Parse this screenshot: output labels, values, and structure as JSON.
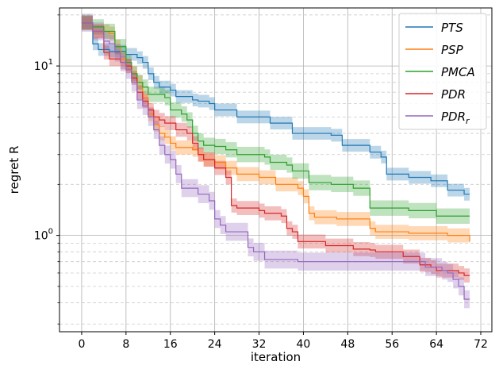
{
  "chart_data": {
    "type": "line",
    "xlabel": "iteration",
    "ylabel": "regret R",
    "xlim": [
      -4,
      74
    ],
    "ylim": [
      0.27,
      22
    ],
    "y_scale": "log",
    "grid": true,
    "legend_position": "top-right",
    "x_ticks": [
      0,
      8,
      16,
      24,
      32,
      40,
      48,
      56,
      64,
      72
    ],
    "y_major_ticks": [
      1,
      10
    ],
    "series": [
      {
        "name": "PTS",
        "color": "#1f77b4",
        "points": [
          [
            0,
            18
          ],
          [
            1,
            18
          ],
          [
            2,
            13.5
          ],
          [
            3,
            12.5
          ],
          [
            5,
            12.2
          ],
          [
            8,
            11.7
          ],
          [
            10,
            11.2
          ],
          [
            11,
            10.5
          ],
          [
            12,
            9
          ],
          [
            13,
            8
          ],
          [
            14,
            7.5
          ],
          [
            16,
            7.2
          ],
          [
            17,
            6.6
          ],
          [
            20,
            6.3
          ],
          [
            21,
            6.2
          ],
          [
            23,
            6.0
          ],
          [
            24,
            5.5
          ],
          [
            27,
            5.5
          ],
          [
            28,
            5.0
          ],
          [
            33,
            5.0
          ],
          [
            34,
            4.6
          ],
          [
            37,
            4.6
          ],
          [
            38,
            4.0
          ],
          [
            44,
            4.0
          ],
          [
            45,
            3.9
          ],
          [
            46,
            3.9
          ],
          [
            47,
            3.4
          ],
          [
            51,
            3.4
          ],
          [
            52,
            3.1
          ],
          [
            53,
            3.1
          ],
          [
            54,
            2.9
          ],
          [
            55,
            2.3
          ],
          [
            58,
            2.3
          ],
          [
            59,
            2.2
          ],
          [
            62,
            2.2
          ],
          [
            63,
            2.1
          ],
          [
            65,
            2.1
          ],
          [
            66,
            1.85
          ],
          [
            68,
            1.85
          ],
          [
            69,
            1.75
          ],
          [
            70,
            1.75
          ]
        ],
        "band": 0.09
      },
      {
        "name": "PSP",
        "color": "#ff7f0e",
        "points": [
          [
            0,
            18
          ],
          [
            1,
            18
          ],
          [
            2,
            16
          ],
          [
            5,
            15.5
          ],
          [
            6,
            13
          ],
          [
            7,
            11
          ],
          [
            8,
            10
          ],
          [
            9,
            9
          ],
          [
            10,
            8
          ],
          [
            11,
            6.5
          ],
          [
            12,
            5.2
          ],
          [
            13,
            4.5
          ],
          [
            14,
            4.0
          ],
          [
            15,
            3.8
          ],
          [
            16,
            3.5
          ],
          [
            17,
            3.3
          ],
          [
            20,
            3.2
          ],
          [
            21,
            3.0
          ],
          [
            22,
            2.8
          ],
          [
            24,
            2.7
          ],
          [
            26,
            2.5
          ],
          [
            28,
            2.3
          ],
          [
            31,
            2.3
          ],
          [
            32,
            2.2
          ],
          [
            34,
            2.2
          ],
          [
            35,
            2.0
          ],
          [
            38,
            2.0
          ],
          [
            39,
            1.9
          ],
          [
            40,
            1.7
          ],
          [
            41,
            1.35
          ],
          [
            42,
            1.28
          ],
          [
            45,
            1.28
          ],
          [
            46,
            1.25
          ],
          [
            51,
            1.25
          ],
          [
            52,
            1.1
          ],
          [
            53,
            1.05
          ],
          [
            58,
            1.05
          ],
          [
            59,
            1.03
          ],
          [
            65,
            1.03
          ],
          [
            66,
            1.0
          ],
          [
            69,
            1.0
          ],
          [
            70,
            0.92
          ]
        ],
        "band": 0.1
      },
      {
        "name": "PMCA",
        "color": "#2ca02c",
        "points": [
          [
            0,
            18
          ],
          [
            2,
            17
          ],
          [
            4,
            16
          ],
          [
            6,
            13
          ],
          [
            8,
            10.5
          ],
          [
            9,
            9
          ],
          [
            10,
            8
          ],
          [
            11,
            7.5
          ],
          [
            12,
            6.8
          ],
          [
            14,
            6.8
          ],
          [
            15,
            6.5
          ],
          [
            16,
            5.5
          ],
          [
            18,
            5.2
          ],
          [
            19,
            4.8
          ],
          [
            20,
            4.0
          ],
          [
            21,
            3.6
          ],
          [
            22,
            3.4
          ],
          [
            24,
            3.35
          ],
          [
            26,
            3.2
          ],
          [
            27,
            3.2
          ],
          [
            28,
            3.0
          ],
          [
            32,
            3.0
          ],
          [
            33,
            2.9
          ],
          [
            34,
            2.7
          ],
          [
            37,
            2.6
          ],
          [
            38,
            2.4
          ],
          [
            40,
            2.4
          ],
          [
            41,
            2.05
          ],
          [
            44,
            2.05
          ],
          [
            45,
            2.0
          ],
          [
            48,
            2.0
          ],
          [
            49,
            1.9
          ],
          [
            51,
            1.9
          ],
          [
            52,
            1.45
          ],
          [
            58,
            1.45
          ],
          [
            59,
            1.4
          ],
          [
            63,
            1.4
          ],
          [
            64,
            1.3
          ],
          [
            70,
            1.3
          ]
        ],
        "band": 0.11
      },
      {
        "name": "PDR",
        "color": "#d62728",
        "points": [
          [
            0,
            18
          ],
          [
            1,
            18
          ],
          [
            2,
            16
          ],
          [
            4,
            12
          ],
          [
            5,
            11
          ],
          [
            7,
            10.5
          ],
          [
            8,
            10
          ],
          [
            9,
            8.5
          ],
          [
            10,
            7
          ],
          [
            11,
            6.2
          ],
          [
            12,
            5.5
          ],
          [
            13,
            5.0
          ],
          [
            14,
            4.8
          ],
          [
            15,
            4.6
          ],
          [
            16,
            4.6
          ],
          [
            17,
            4.2
          ],
          [
            19,
            4.0
          ],
          [
            20,
            3.5
          ],
          [
            21,
            3.0
          ],
          [
            22,
            2.8
          ],
          [
            24,
            2.5
          ],
          [
            25,
            2.5
          ],
          [
            26,
            2.2
          ],
          [
            27,
            1.5
          ],
          [
            28,
            1.45
          ],
          [
            32,
            1.4
          ],
          [
            33,
            1.35
          ],
          [
            36,
            1.3
          ],
          [
            37,
            1.1
          ],
          [
            38,
            1.05
          ],
          [
            39,
            0.92
          ],
          [
            43,
            0.92
          ],
          [
            44,
            0.87
          ],
          [
            48,
            0.87
          ],
          [
            49,
            0.83
          ],
          [
            52,
            0.82
          ],
          [
            53,
            0.8
          ],
          [
            57,
            0.8
          ],
          [
            58,
            0.75
          ],
          [
            60,
            0.75
          ],
          [
            61,
            0.67
          ],
          [
            63,
            0.65
          ],
          [
            64,
            0.62
          ],
          [
            68,
            0.6
          ],
          [
            69,
            0.58
          ],
          [
            70,
            0.58
          ]
        ],
        "band": 0.1
      },
      {
        "name": "PDR_r",
        "color": "#9467bd",
        "points": [
          [
            0,
            18
          ],
          [
            1,
            18
          ],
          [
            2,
            16
          ],
          [
            3,
            16
          ],
          [
            4,
            14
          ],
          [
            5,
            13.5
          ],
          [
            6,
            12
          ],
          [
            7,
            10.5
          ],
          [
            8,
            9.5
          ],
          [
            9,
            8
          ],
          [
            10,
            6.3
          ],
          [
            11,
            5.8
          ],
          [
            12,
            5.0
          ],
          [
            13,
            4.2
          ],
          [
            14,
            3.4
          ],
          [
            15,
            3.0
          ],
          [
            16,
            2.8
          ],
          [
            17,
            2.3
          ],
          [
            18,
            1.9
          ],
          [
            20,
            1.9
          ],
          [
            21,
            1.75
          ],
          [
            23,
            1.6
          ],
          [
            24,
            1.25
          ],
          [
            25,
            1.15
          ],
          [
            26,
            1.05
          ],
          [
            29,
            1.05
          ],
          [
            30,
            0.85
          ],
          [
            31,
            0.8
          ],
          [
            33,
            0.72
          ],
          [
            38,
            0.72
          ],
          [
            39,
            0.7
          ],
          [
            61,
            0.7
          ],
          [
            62,
            0.65
          ],
          [
            65,
            0.62
          ],
          [
            66,
            0.6
          ],
          [
            67,
            0.55
          ],
          [
            68,
            0.5
          ],
          [
            69,
            0.42
          ],
          [
            70,
            0.42
          ]
        ],
        "band": 0.13
      }
    ]
  },
  "legend": [
    {
      "label": "PTS",
      "sub": ""
    },
    {
      "label": "PSP",
      "sub": ""
    },
    {
      "label": "PMCA",
      "sub": ""
    },
    {
      "label": "PDR",
      "sub": ""
    },
    {
      "label": "PDR",
      "sub": "r"
    }
  ]
}
